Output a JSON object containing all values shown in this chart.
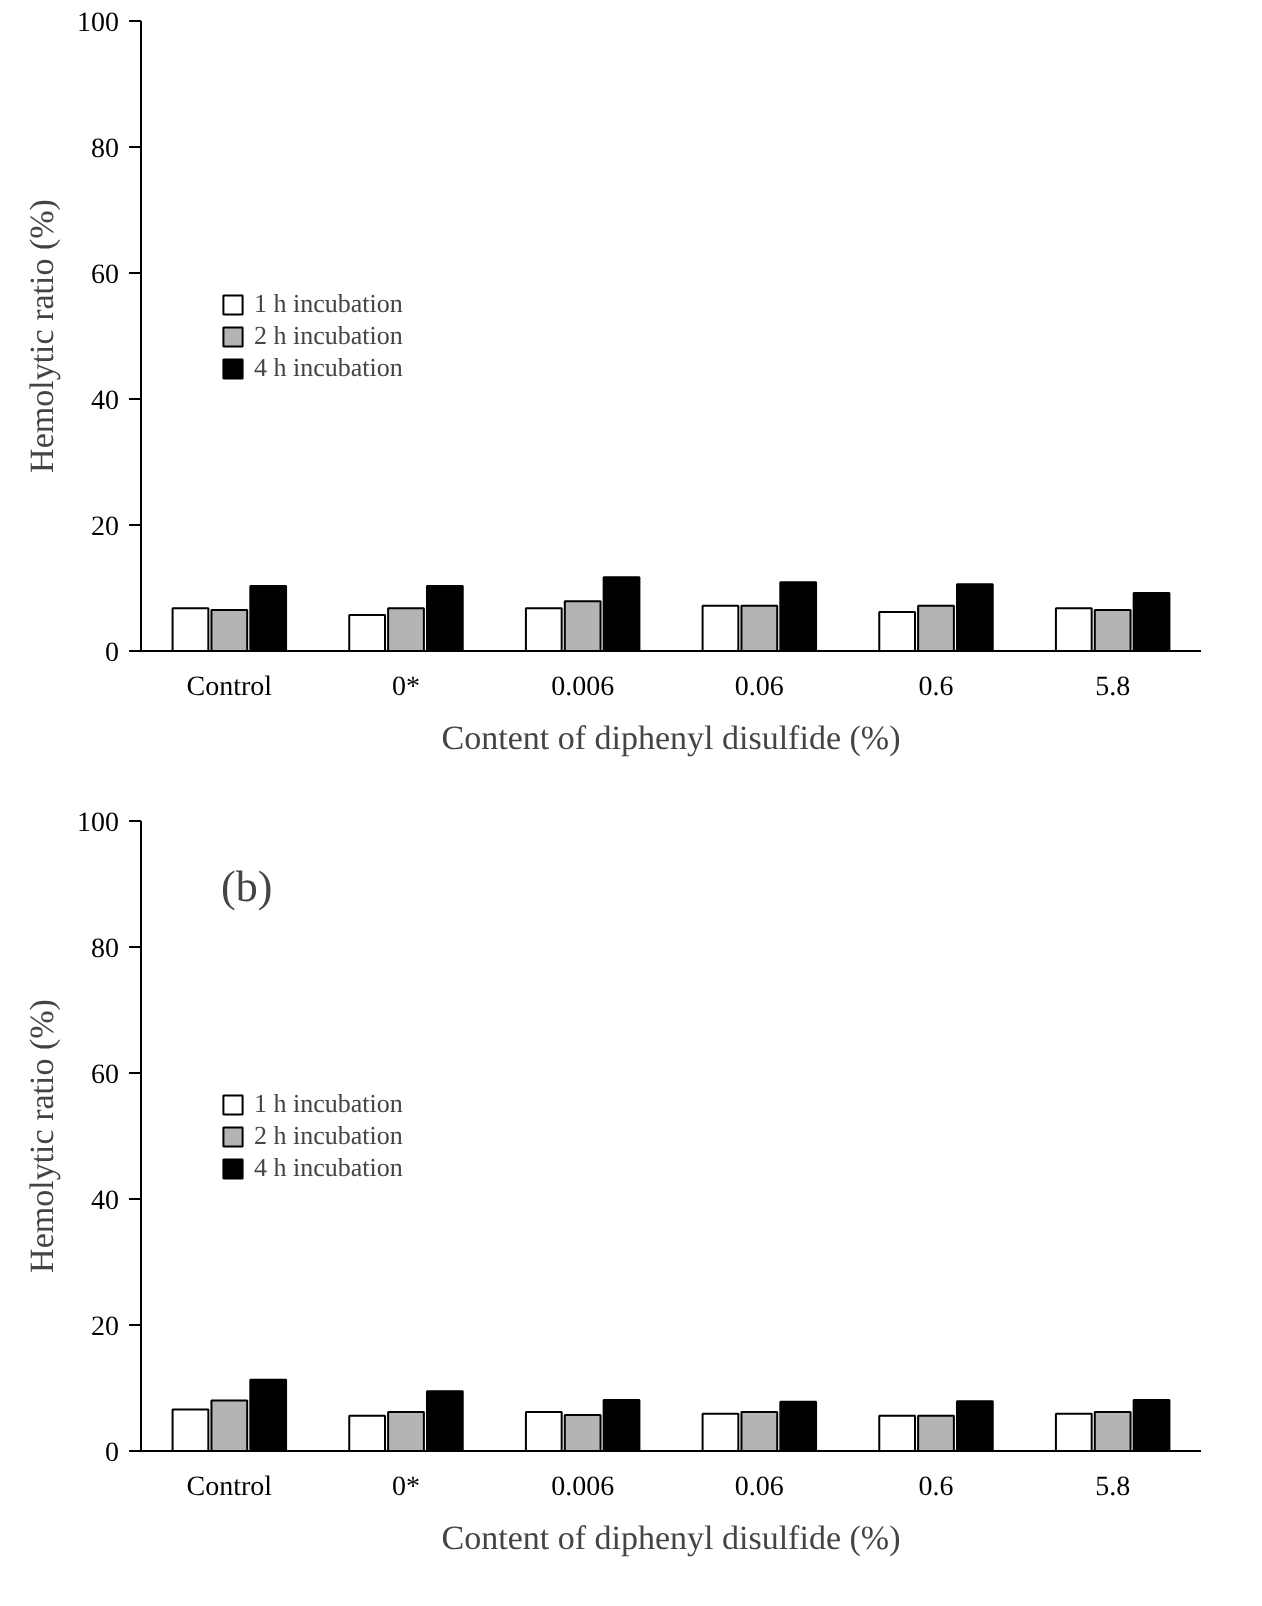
{
  "chart_data": [
    {
      "type": "bar",
      "categories": [
        "Control",
        "0*",
        "0.006",
        "0.06",
        "0.6",
        "5.8"
      ],
      "xlabel": "Content of diphenyl disulfide (%)",
      "ylabel": "Hemolytic ratio (%)",
      "ylim": [
        0,
        100
      ],
      "yticks": [
        0,
        20,
        40,
        60,
        80,
        100
      ],
      "grid": false,
      "legend": "left",
      "series": [
        {
          "name": "1 h incubation",
          "color": "#ffffff",
          "values": [
            6.8,
            5.7,
            6.8,
            7.2,
            6.2,
            6.8
          ]
        },
        {
          "name": "2 h incubation",
          "color": "#b4b4b4",
          "values": [
            6.5,
            6.8,
            7.9,
            7.2,
            7.2,
            6.5
          ]
        },
        {
          "name": "4 h incubation",
          "color": "#000000",
          "values": [
            10.3,
            10.3,
            11.7,
            10.9,
            10.6,
            9.2
          ]
        }
      ]
    },
    {
      "type": "bar",
      "categories": [
        "Control",
        "0*",
        "0.006",
        "0.06",
        "0.6",
        "5.8"
      ],
      "xlabel": "Content of diphenyl disulfide (%)",
      "ylabel": "Hemolytic ratio (%)",
      "ylim": [
        0,
        100
      ],
      "yticks": [
        0,
        20,
        40,
        60,
        80,
        100
      ],
      "grid": false,
      "legend": "left",
      "annotations": [
        "(b)"
      ],
      "series": [
        {
          "name": "1 h incubation",
          "color": "#ffffff",
          "values": [
            6.6,
            5.6,
            6.2,
            5.9,
            5.6,
            5.9
          ]
        },
        {
          "name": "2 h incubation",
          "color": "#b4b4b4",
          "values": [
            8.0,
            6.2,
            5.7,
            6.2,
            5.6,
            6.2
          ]
        },
        {
          "name": "4 h incubation",
          "color": "#000000",
          "values": [
            11.3,
            9.5,
            8.1,
            7.8,
            7.9,
            8.1
          ]
        }
      ]
    }
  ]
}
